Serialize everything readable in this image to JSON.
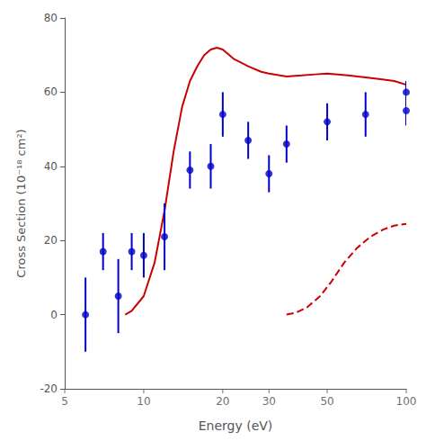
{
  "chart_data": {
    "type": "line",
    "xlabel": "Energy (eV)",
    "ylabel": "Cross Section (10⁻¹⁸ cm²)",
    "log": "x",
    "grid": false,
    "xlim": [
      5,
      100
    ],
    "ylim": [
      -20,
      80
    ],
    "xticks": [
      5,
      10,
      20,
      30,
      50,
      100
    ],
    "yticks": [
      -20,
      0,
      20,
      40,
      60,
      80
    ],
    "series": [
      {
        "type": "line",
        "color": "#cc0000",
        "line_style": "solid",
        "x": [
          8.5,
          9,
          10,
          11,
          12,
          13,
          14,
          15,
          16,
          17,
          18,
          19,
          20,
          22,
          25,
          28,
          30,
          33,
          35,
          40,
          45,
          50,
          60,
          70,
          80,
          90,
          100
        ],
        "values": [
          0,
          1,
          5,
          14,
          28,
          44,
          56,
          63,
          67,
          70,
          71.5,
          72,
          71.5,
          69,
          67,
          65.5,
          65,
          64.5,
          64.2,
          64.5,
          64.8,
          65,
          64.5,
          64,
          63.5,
          63,
          62
        ]
      },
      {
        "type": "line",
        "color": "#cc0000",
        "line_style": "dashed",
        "x": [
          35,
          38,
          42,
          47,
          52,
          58,
          65,
          73,
          82,
          90,
          100
        ],
        "values": [
          0,
          0.5,
          2,
          5,
          9,
          14,
          18,
          21,
          23,
          24,
          24.5
        ]
      },
      {
        "type": "scatter",
        "color": "#0000cc",
        "marker": "circle",
        "x": [
          6,
          7,
          8,
          9,
          10,
          12,
          15,
          18,
          20,
          25,
          30,
          35,
          50,
          70,
          100,
          100
        ],
        "values": [
          0,
          17,
          5,
          17,
          16,
          21,
          39,
          40,
          54,
          47,
          38,
          46,
          52,
          54,
          60,
          55
        ],
        "yerr_low": [
          10,
          5,
          10,
          5,
          6,
          9,
          5,
          6,
          6,
          5,
          5,
          5,
          5,
          6,
          3,
          4
        ],
        "yerr_high": [
          10,
          5,
          10,
          5,
          6,
          9,
          5,
          6,
          6,
          5,
          5,
          5,
          5,
          6,
          3,
          4
        ]
      }
    ]
  }
}
